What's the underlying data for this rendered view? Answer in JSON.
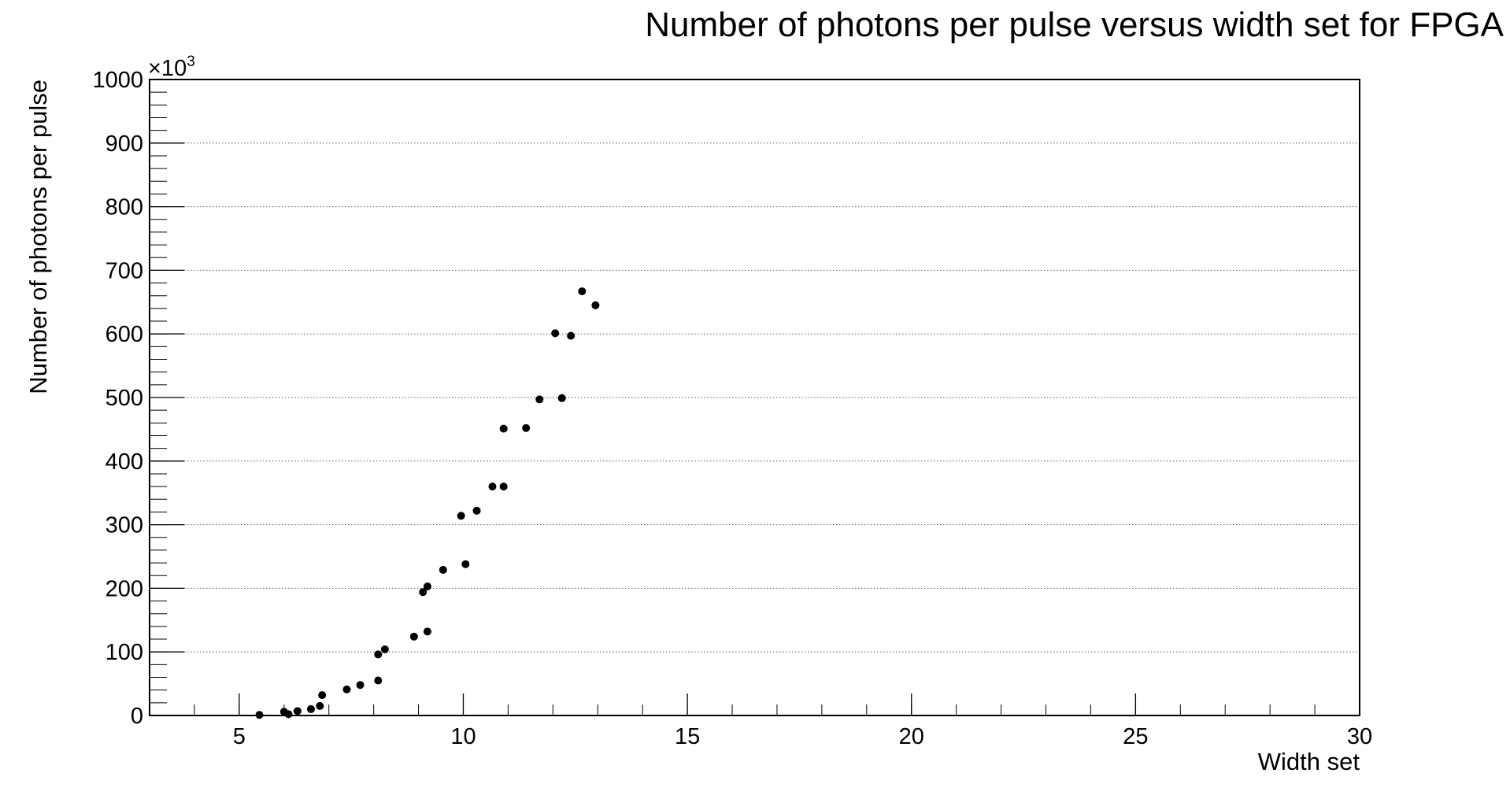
{
  "chart_data": {
    "type": "scatter",
    "title": "Number of photons per pulse versus width set for FPGA",
    "xlabel": "Width set",
    "ylabel": "Number of photons per pulse",
    "y_multiplier": {
      "base": "×10",
      "exponent": "3"
    },
    "xlim": [
      3,
      30
    ],
    "ylim": [
      0,
      1000
    ],
    "x_ticks": [
      5,
      10,
      15,
      20,
      25,
      30
    ],
    "y_ticks": [
      0,
      100,
      200,
      300,
      400,
      500,
      600,
      700,
      800,
      900,
      1000
    ],
    "x_tick_labels": [
      "5",
      "10",
      "15",
      "20",
      "25",
      "30"
    ],
    "y_tick_labels": [
      "0",
      "100",
      "200",
      "300",
      "400",
      "500",
      "600",
      "700",
      "800",
      "900",
      "1000"
    ],
    "grid": {
      "x": false,
      "y": true
    },
    "marker_color": "#000000",
    "points": [
      {
        "x": 5.45,
        "y": 1
      },
      {
        "x": 6.0,
        "y": 6
      },
      {
        "x": 6.1,
        "y": 2
      },
      {
        "x": 6.3,
        "y": 7
      },
      {
        "x": 6.6,
        "y": 10
      },
      {
        "x": 6.8,
        "y": 15
      },
      {
        "x": 6.85,
        "y": 32
      },
      {
        "x": 7.4,
        "y": 41
      },
      {
        "x": 7.7,
        "y": 48
      },
      {
        "x": 8.1,
        "y": 96
      },
      {
        "x": 8.1,
        "y": 55
      },
      {
        "x": 8.25,
        "y": 104
      },
      {
        "x": 8.9,
        "y": 124
      },
      {
        "x": 9.1,
        "y": 194
      },
      {
        "x": 9.2,
        "y": 203
      },
      {
        "x": 9.2,
        "y": 132
      },
      {
        "x": 9.55,
        "y": 229
      },
      {
        "x": 9.95,
        "y": 314
      },
      {
        "x": 10.05,
        "y": 238
      },
      {
        "x": 10.3,
        "y": 322
      },
      {
        "x": 10.65,
        "y": 360
      },
      {
        "x": 10.9,
        "y": 360
      },
      {
        "x": 10.9,
        "y": 451
      },
      {
        "x": 11.4,
        "y": 452
      },
      {
        "x": 11.7,
        "y": 497
      },
      {
        "x": 12.05,
        "y": 601
      },
      {
        "x": 12.2,
        "y": 499
      },
      {
        "x": 12.4,
        "y": 597
      },
      {
        "x": 12.65,
        "y": 667
      },
      {
        "x": 12.95,
        "y": 645
      }
    ]
  }
}
